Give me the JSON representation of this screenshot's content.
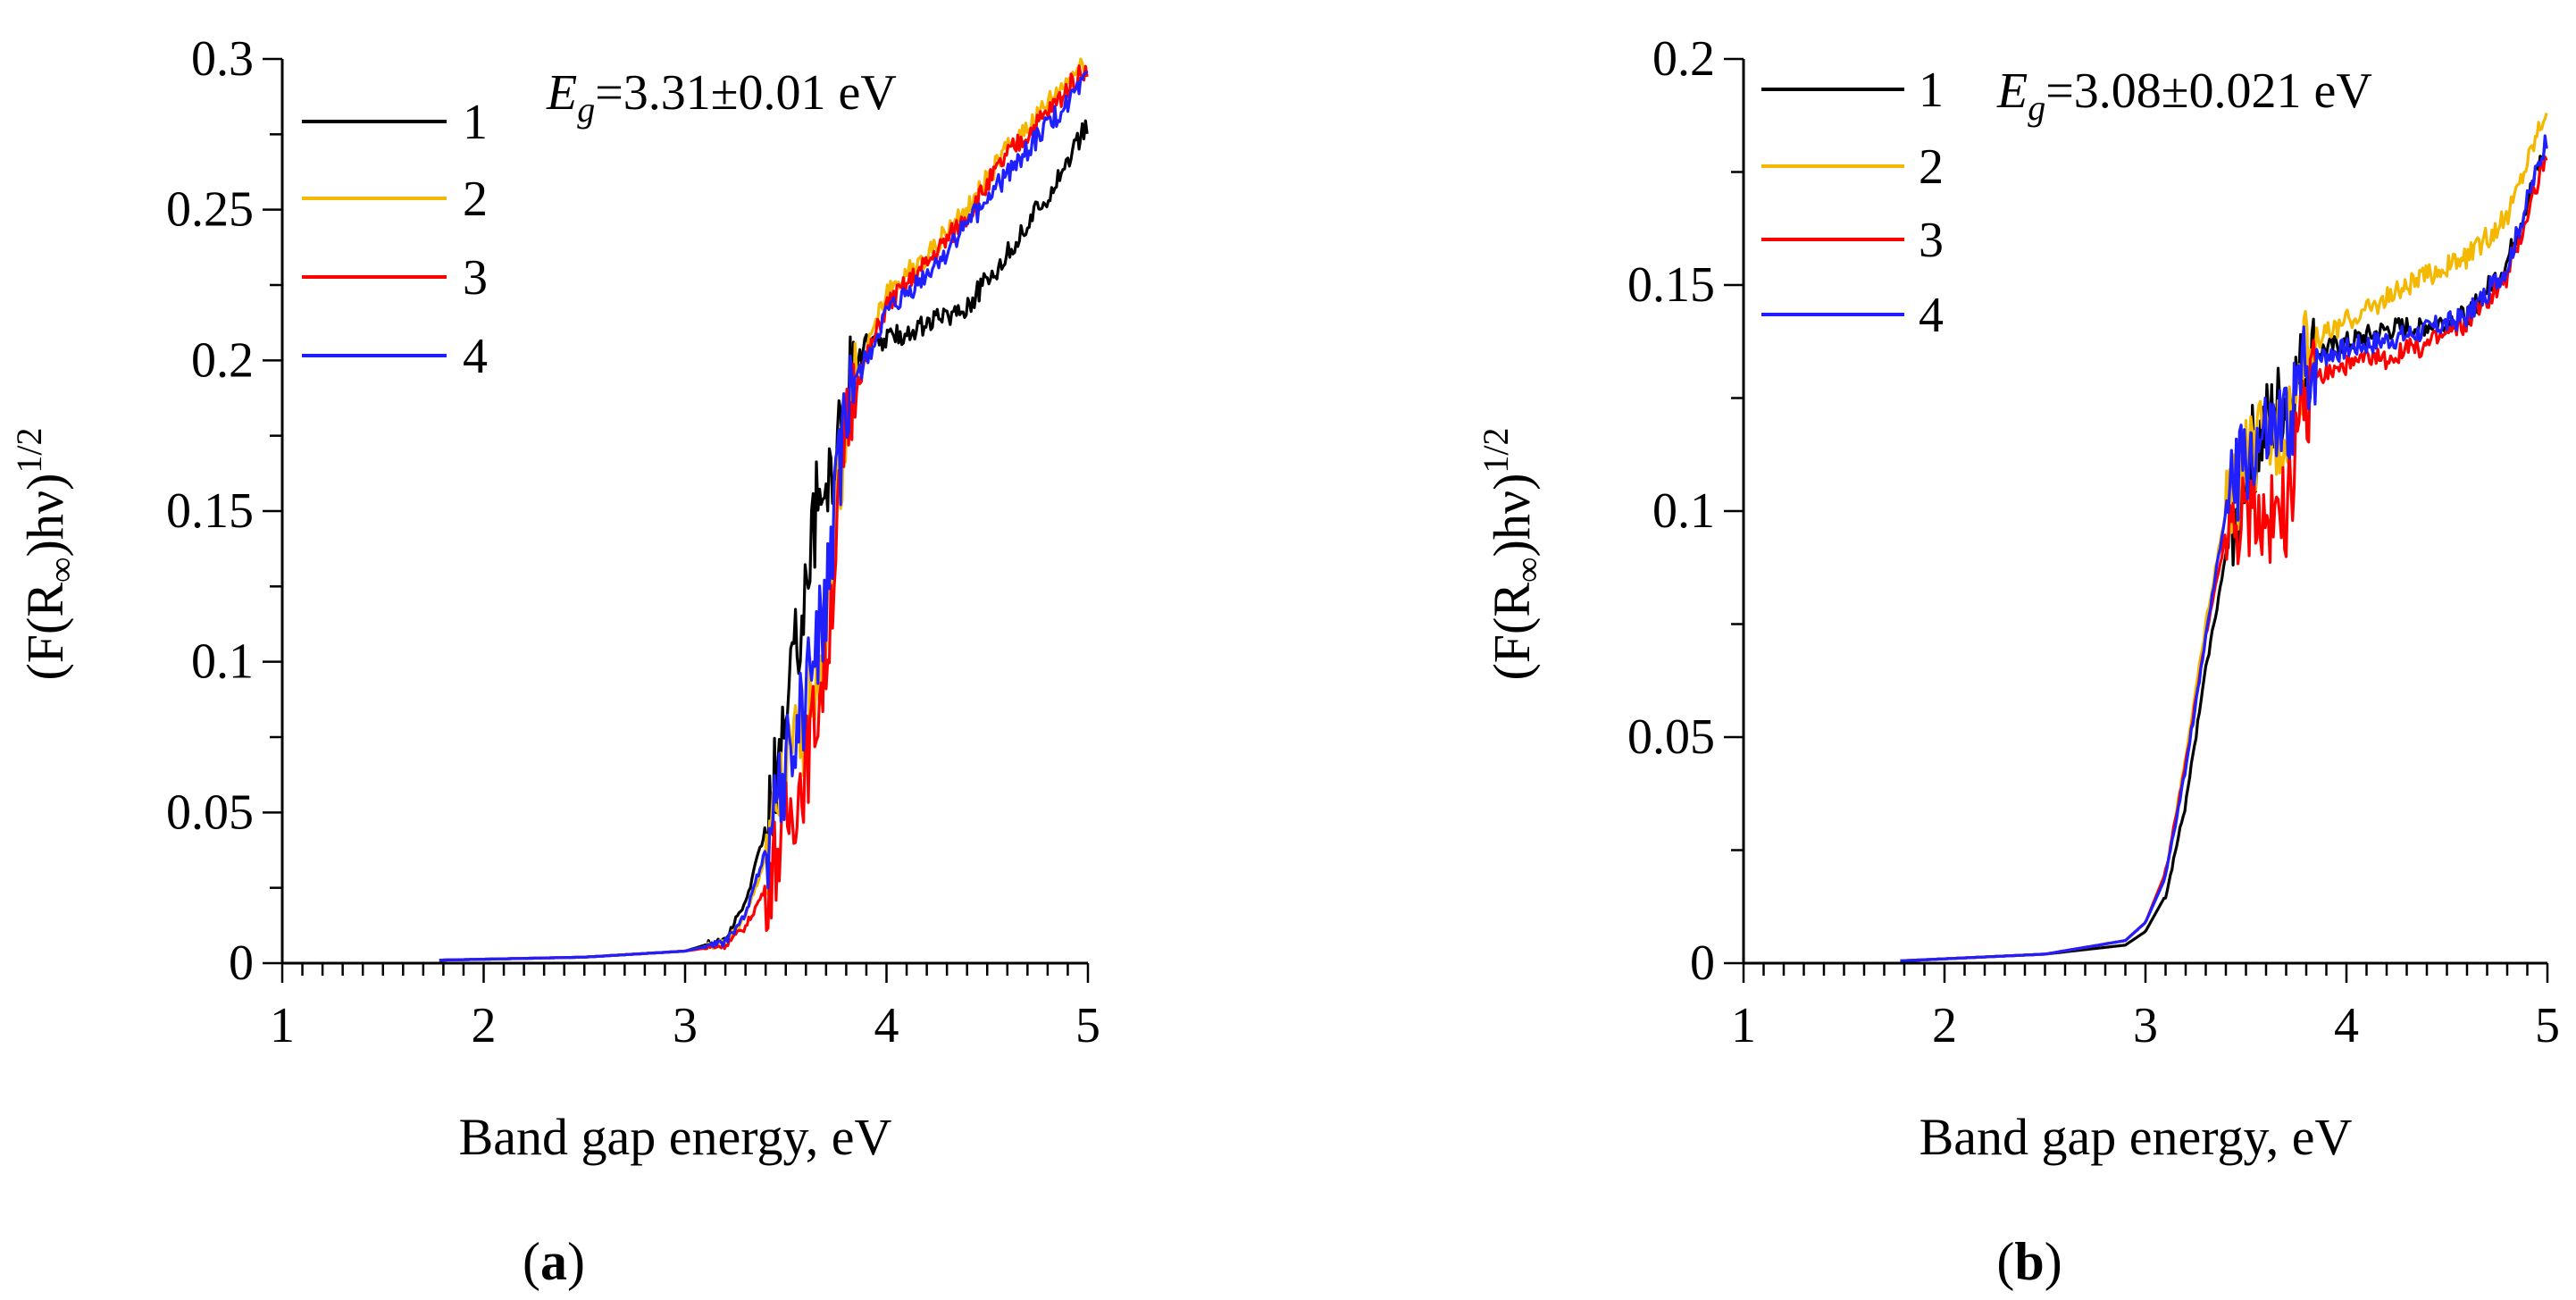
{
  "chart_data": [
    {
      "type": "line",
      "panel_label": "a",
      "annotation": {
        "symbol": "E",
        "subscript": "g",
        "rest": "=3.31±0.01 eV"
      },
      "xlabel": "Band gap energy, eV",
      "ylabel": {
        "pre": "(F(R",
        "sub": "∞",
        "mid": ")hν)",
        "sup": "1/2"
      },
      "xlim": [
        1,
        5
      ],
      "ylim": [
        0,
        0.3
      ],
      "xticks": [
        1,
        2,
        3,
        4,
        5
      ],
      "yticks": [
        0,
        0.05,
        0.1,
        0.15,
        0.2,
        0.25,
        0.3
      ],
      "ytick_labels": [
        "0",
        "0.05",
        "0.1",
        "0.15",
        "0.2",
        "0.25",
        "0.3"
      ],
      "legend_position": "top-left",
      "series": [
        {
          "name": "1",
          "color": "#000000",
          "x": [
            1.78,
            2.5,
            3.0,
            3.2,
            3.3,
            3.4,
            3.5,
            3.55,
            3.6,
            3.65,
            3.7,
            3.75,
            3.8,
            3.85,
            3.9,
            4.0,
            4.2,
            4.4,
            4.6,
            4.8,
            5.0
          ],
          "y": [
            0.001,
            0.002,
            0.004,
            0.008,
            0.02,
            0.045,
            0.08,
            0.105,
            0.13,
            0.15,
            0.16,
            0.17,
            0.19,
            0.2,
            0.205,
            0.207,
            0.212,
            0.218,
            0.235,
            0.255,
            0.278
          ]
        },
        {
          "name": "2",
          "color": "#F5B800",
          "x": [
            1.78,
            2.5,
            3.0,
            3.2,
            3.3,
            3.4,
            3.5,
            3.6,
            3.7,
            3.75,
            3.8,
            3.85,
            3.9,
            4.0,
            4.2,
            4.4,
            4.6,
            4.8,
            5.0
          ],
          "y": [
            0.001,
            0.002,
            0.004,
            0.007,
            0.015,
            0.035,
            0.06,
            0.08,
            0.11,
            0.15,
            0.18,
            0.195,
            0.203,
            0.222,
            0.235,
            0.25,
            0.27,
            0.285,
            0.3
          ]
        },
        {
          "name": "3",
          "color": "#FF0000",
          "x": [
            1.78,
            2.5,
            3.0,
            3.2,
            3.3,
            3.4,
            3.5,
            3.6,
            3.7,
            3.75,
            3.8,
            3.85,
            3.9,
            4.0,
            4.2,
            4.4,
            4.6,
            4.8,
            5.0
          ],
          "y": [
            0.001,
            0.002,
            0.004,
            0.006,
            0.012,
            0.025,
            0.045,
            0.065,
            0.1,
            0.14,
            0.175,
            0.193,
            0.2,
            0.218,
            0.232,
            0.248,
            0.268,
            0.282,
            0.298
          ]
        },
        {
          "name": "4",
          "color": "#1F1FFF",
          "x": [
            1.78,
            2.5,
            3.0,
            3.2,
            3.3,
            3.4,
            3.5,
            3.6,
            3.7,
            3.75,
            3.8,
            3.85,
            3.9,
            4.0,
            4.2,
            4.4,
            4.6,
            4.8,
            5.0
          ],
          "y": [
            0.001,
            0.002,
            0.004,
            0.007,
            0.016,
            0.038,
            0.065,
            0.09,
            0.12,
            0.155,
            0.18,
            0.195,
            0.2,
            0.215,
            0.228,
            0.245,
            0.262,
            0.278,
            0.293
          ]
        }
      ]
    },
    {
      "type": "line",
      "panel_label": "b",
      "annotation": {
        "symbol": "E",
        "subscript": "g",
        "rest": "=3.08±0.021 eV"
      },
      "xlabel": "Band gap energy, eV",
      "ylabel": {
        "pre": "(F(R",
        "sub": "∞",
        "mid": ")hν)",
        "sup": "1/2"
      },
      "xlim": [
        1,
        5
      ],
      "ylim": [
        0,
        0.2
      ],
      "xticks": [
        1,
        2,
        3,
        4,
        5
      ],
      "yticks": [
        0,
        0.05,
        0.1,
        0.15,
        0.2
      ],
      "ytick_labels": [
        "0",
        "0.05",
        "0.1",
        "0.15",
        "0.2"
      ],
      "legend_position": "top-left",
      "series": [
        {
          "name": "1",
          "color": "#000000",
          "x": [
            1.78,
            2.5,
            2.9,
            3.0,
            3.1,
            3.2,
            3.3,
            3.4,
            3.5,
            3.6,
            3.7,
            3.78,
            3.85,
            4.0,
            4.2,
            4.4,
            4.6,
            4.8,
            5.0
          ],
          "y": [
            0.0005,
            0.002,
            0.004,
            0.007,
            0.015,
            0.035,
            0.065,
            0.09,
            0.11,
            0.118,
            0.125,
            0.13,
            0.135,
            0.137,
            0.14,
            0.141,
            0.143,
            0.155,
            0.182
          ]
        },
        {
          "name": "2",
          "color": "#F5B800",
          "x": [
            1.78,
            2.5,
            2.9,
            3.0,
            3.1,
            3.2,
            3.3,
            3.4,
            3.5,
            3.6,
            3.7,
            3.78,
            3.85,
            4.0,
            4.2,
            4.4,
            4.6,
            4.8,
            5.0
          ],
          "y": [
            0.0005,
            0.002,
            0.005,
            0.009,
            0.02,
            0.045,
            0.075,
            0.1,
            0.11,
            0.115,
            0.12,
            0.132,
            0.138,
            0.142,
            0.147,
            0.152,
            0.156,
            0.165,
            0.19
          ]
        },
        {
          "name": "3",
          "color": "#FF0000",
          "x": [
            1.78,
            2.5,
            2.9,
            3.0,
            3.1,
            3.2,
            3.3,
            3.4,
            3.5,
            3.6,
            3.7,
            3.78,
            3.85,
            4.0,
            4.2,
            4.4,
            4.6,
            4.8,
            5.0
          ],
          "y": [
            0.0005,
            0.002,
            0.005,
            0.009,
            0.02,
            0.044,
            0.072,
            0.095,
            0.1,
            0.098,
            0.1,
            0.12,
            0.13,
            0.132,
            0.134,
            0.137,
            0.142,
            0.152,
            0.18
          ]
        },
        {
          "name": "4",
          "color": "#1F1FFF",
          "x": [
            1.78,
            2.5,
            2.9,
            3.0,
            3.1,
            3.2,
            3.3,
            3.4,
            3.5,
            3.6,
            3.7,
            3.78,
            3.85,
            4.0,
            4.2,
            4.4,
            4.6,
            4.8,
            5.0
          ],
          "y": [
            0.0005,
            0.002,
            0.005,
            0.009,
            0.019,
            0.043,
            0.072,
            0.1,
            0.112,
            0.115,
            0.118,
            0.13,
            0.134,
            0.136,
            0.138,
            0.14,
            0.143,
            0.154,
            0.183
          ]
        }
      ]
    }
  ]
}
